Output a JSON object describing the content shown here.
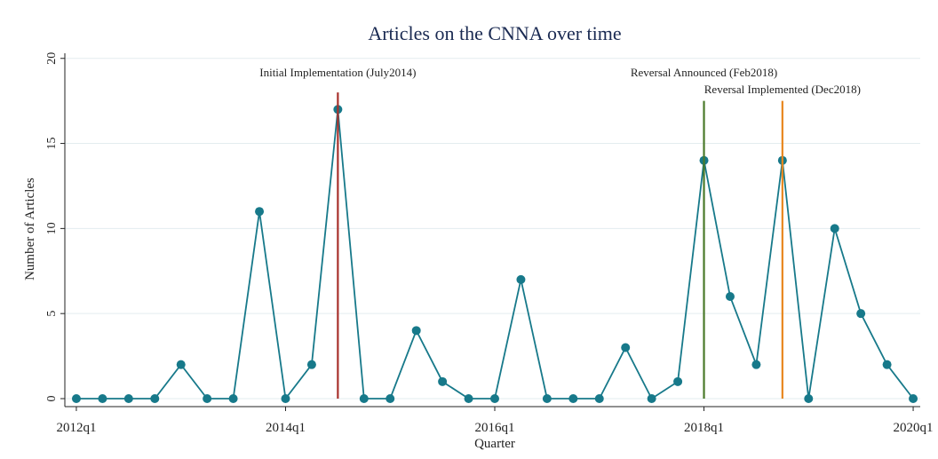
{
  "chart_data": {
    "type": "line",
    "title": "Articles on the CNNA over time",
    "x_label": "Quarter",
    "y_label": "Number of Articles",
    "x": [
      208,
      209,
      210,
      211,
      212,
      213,
      214,
      215,
      216,
      217,
      218,
      219,
      220,
      221,
      222,
      223,
      224,
      225,
      226,
      227,
      228,
      229,
      230,
      231,
      232,
      233,
      234,
      235,
      236,
      237,
      238,
      239,
      240
    ],
    "values": [
      0,
      0,
      0,
      0,
      2,
      0,
      0,
      11,
      0,
      2,
      17,
      0,
      0,
      4,
      1,
      0,
      0,
      7,
      0,
      0,
      0,
      3,
      0,
      1,
      14,
      6,
      2,
      14,
      0,
      10,
      5,
      2,
      0
    ],
    "color": "#17798a",
    "xlim": [
      207.56,
      240.27
    ],
    "xticks": [
      {
        "value": 208,
        "label": "2012q1"
      },
      {
        "value": 216,
        "label": "2014q1"
      },
      {
        "value": 224,
        "label": "2016q1"
      },
      {
        "value": 232,
        "label": "2018q1"
      },
      {
        "value": 240,
        "label": "2020q1"
      }
    ],
    "ylim": [
      -0.47,
      20.3
    ],
    "yticks": [
      0,
      5,
      10,
      15,
      20
    ],
    "grid": true,
    "annotations": [
      {
        "x": 218,
        "ymax": 18,
        "label": "Initial Implementation (July2014)",
        "color": "#a8322d"
      },
      {
        "x": 232,
        "ymax": 17.5,
        "label": "Reversal Announced (Feb2018)",
        "color": "#4a7a2a"
      },
      {
        "x": 235,
        "ymax": 17.5,
        "label": "Reversal Implemented (Dec2018)",
        "color": "#e8871e"
      }
    ]
  }
}
